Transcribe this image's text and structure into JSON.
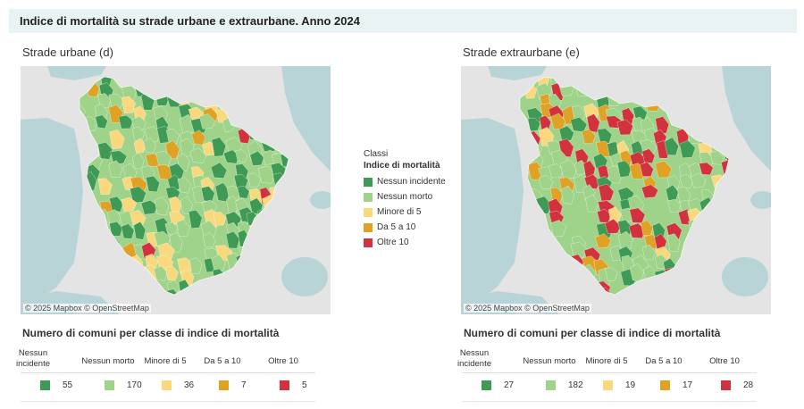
{
  "title": "Indice di mortalità su strade urbane e extraurbane. Anno 2024",
  "colors": {
    "nessun_incidente": "#3f9a55",
    "nessun_morto": "#9fd38a",
    "minore_5": "#fad97e",
    "da_5_a_10": "#e0a224",
    "oltre_10": "#d2323d",
    "sea": "#b9d4d6",
    "land": "#e4e4e4"
  },
  "panels": [
    {
      "title": "Strade urbane  (d)",
      "credit": "© 2025 Mapbox  © OpenStreetMap",
      "counts_title": "Numero di comuni per classe di indice di mortalità",
      "counts": [
        55,
        170,
        36,
        7,
        5
      ]
    },
    {
      "title": "Strade extraurbane (e)",
      "credit": "© 2025 Mapbox  © OpenStreetMap",
      "counts_title": "Numero di comuni per classe di indice di mortalità",
      "counts": [
        27,
        182,
        19,
        17,
        28
      ]
    }
  ],
  "legend": {
    "title_line1": "Classi",
    "title_line2": "Indice di mortalità",
    "items": [
      "Nessun incidente",
      "Nessun morto",
      "Minore di 5",
      "Da 5 a 10",
      "Oltre 10"
    ]
  },
  "table_headers": [
    "Nessun incidente",
    "Nessun morto",
    "Minore di 5",
    "Da 5 a 10",
    "Oltre 10"
  ],
  "table_header_lines": [
    [
      "Nessun",
      "incidente"
    ],
    [
      "Nessun morto"
    ],
    [
      "Minore di 5"
    ],
    [
      "Da 5 a 10"
    ],
    [
      "Oltre 10"
    ]
  ]
}
